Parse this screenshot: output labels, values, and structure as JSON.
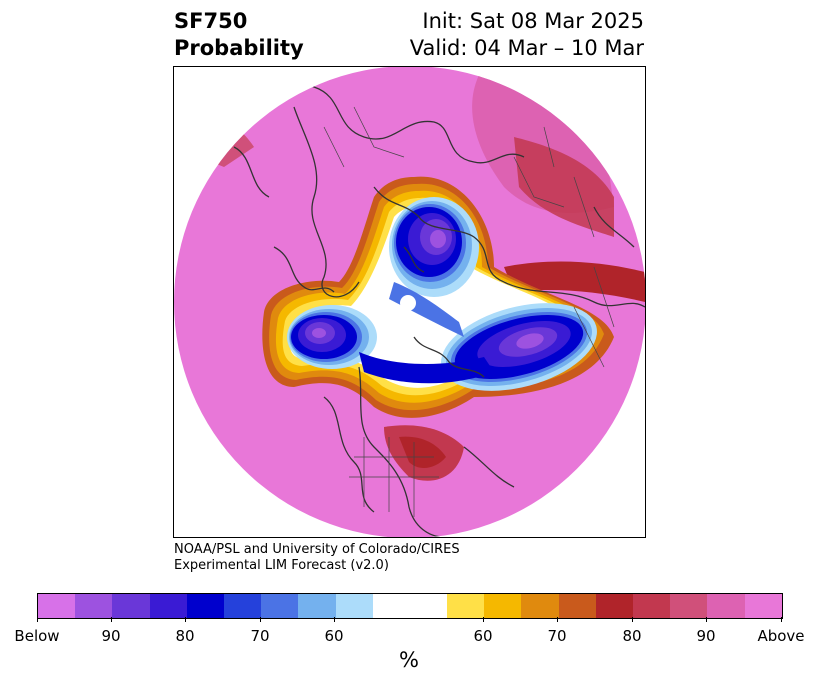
{
  "header": {
    "variable": "SF750",
    "product": "Probability",
    "init": "Init: Sat 08 Mar 2025",
    "valid": "Valid: 04 Mar – 10 Mar"
  },
  "credit": {
    "line1": "NOAA/PSL and University of Colorado/CIRES",
    "line2": "Experimental LIM Forecast (v2.0)"
  },
  "colorbar": {
    "unit": "%",
    "colors": [
      "#d771e8",
      "#9d52e0",
      "#6a37d8",
      "#3a1bd4",
      "#0000cd",
      "#2541db",
      "#4b73e5",
      "#74b1ee",
      "#acdcfa",
      "#ffffff",
      "#ffe047",
      "#f5b800",
      "#e08a0e",
      "#c95a1c",
      "#b0242a",
      "#c2384f",
      "#d0507a",
      "#dd62b2",
      "#e877d8"
    ],
    "labels": [
      "Below",
      "90",
      "80",
      "70",
      "60",
      "60",
      "70",
      "80",
      "90",
      "Above"
    ]
  },
  "map": {
    "projection": "north-polar-stereographic",
    "background_color": "#e877d8",
    "blue_core_color": "#0000cd",
    "white_color": "#ffffff"
  }
}
